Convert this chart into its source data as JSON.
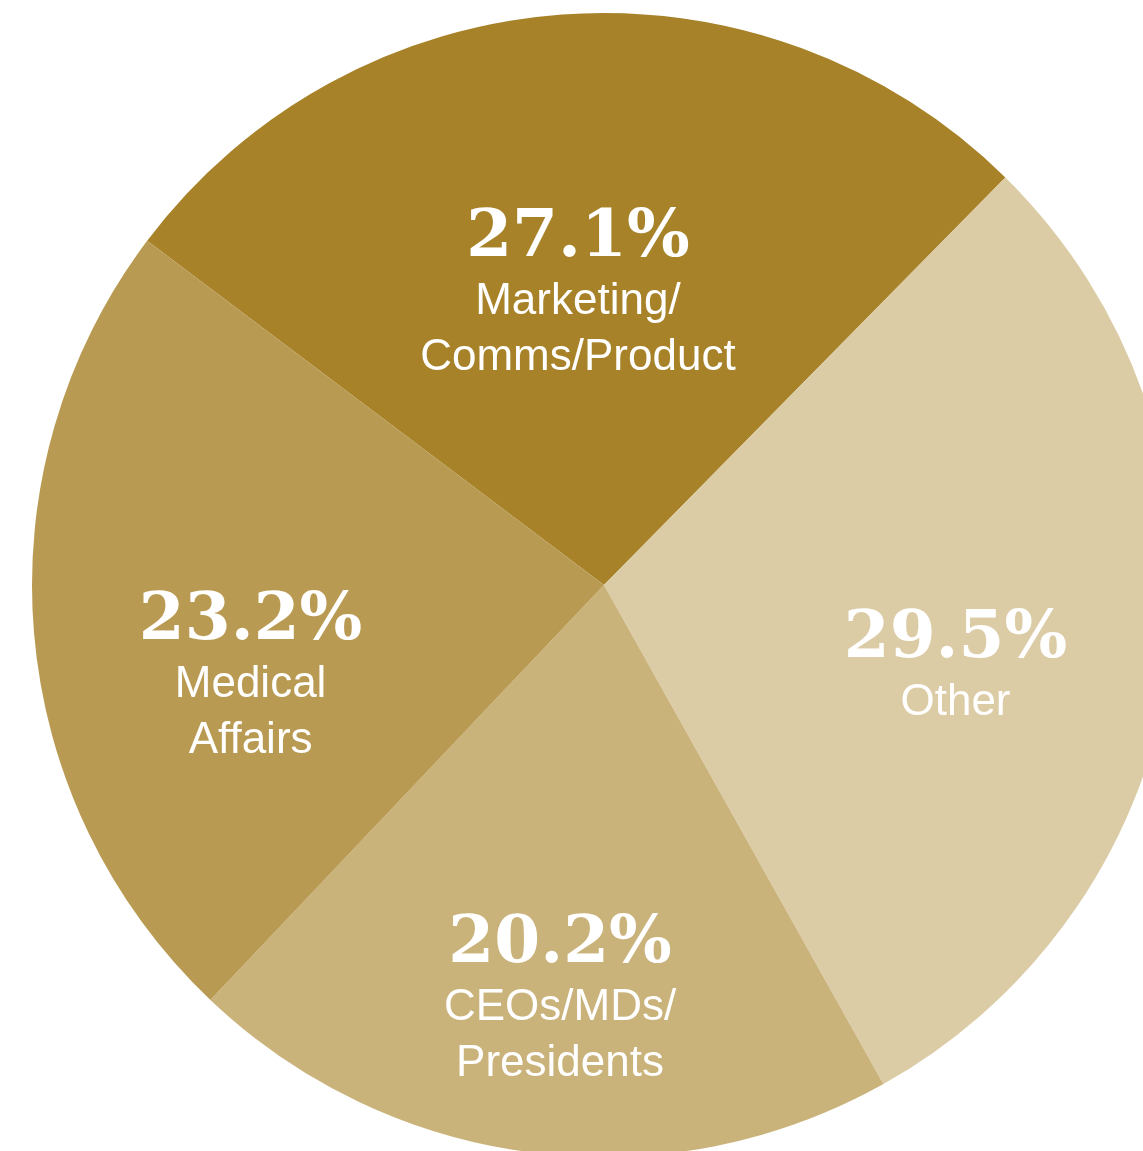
{
  "chart_data": {
    "type": "pie",
    "categories": [
      "Marketing/\nComms/Product",
      "Other",
      "CEOs/MDs/\nPresidents",
      "Medical\nAffairs"
    ],
    "values": [
      27.1,
      29.5,
      20.2,
      23.2
    ],
    "colors": [
      "#a78228",
      "#dccca6",
      "#cab27b",
      "#b99a52"
    ],
    "value_labels": [
      "27.1%",
      "29.5%",
      "20.2%",
      "23.2%"
    ],
    "legend": false
  }
}
